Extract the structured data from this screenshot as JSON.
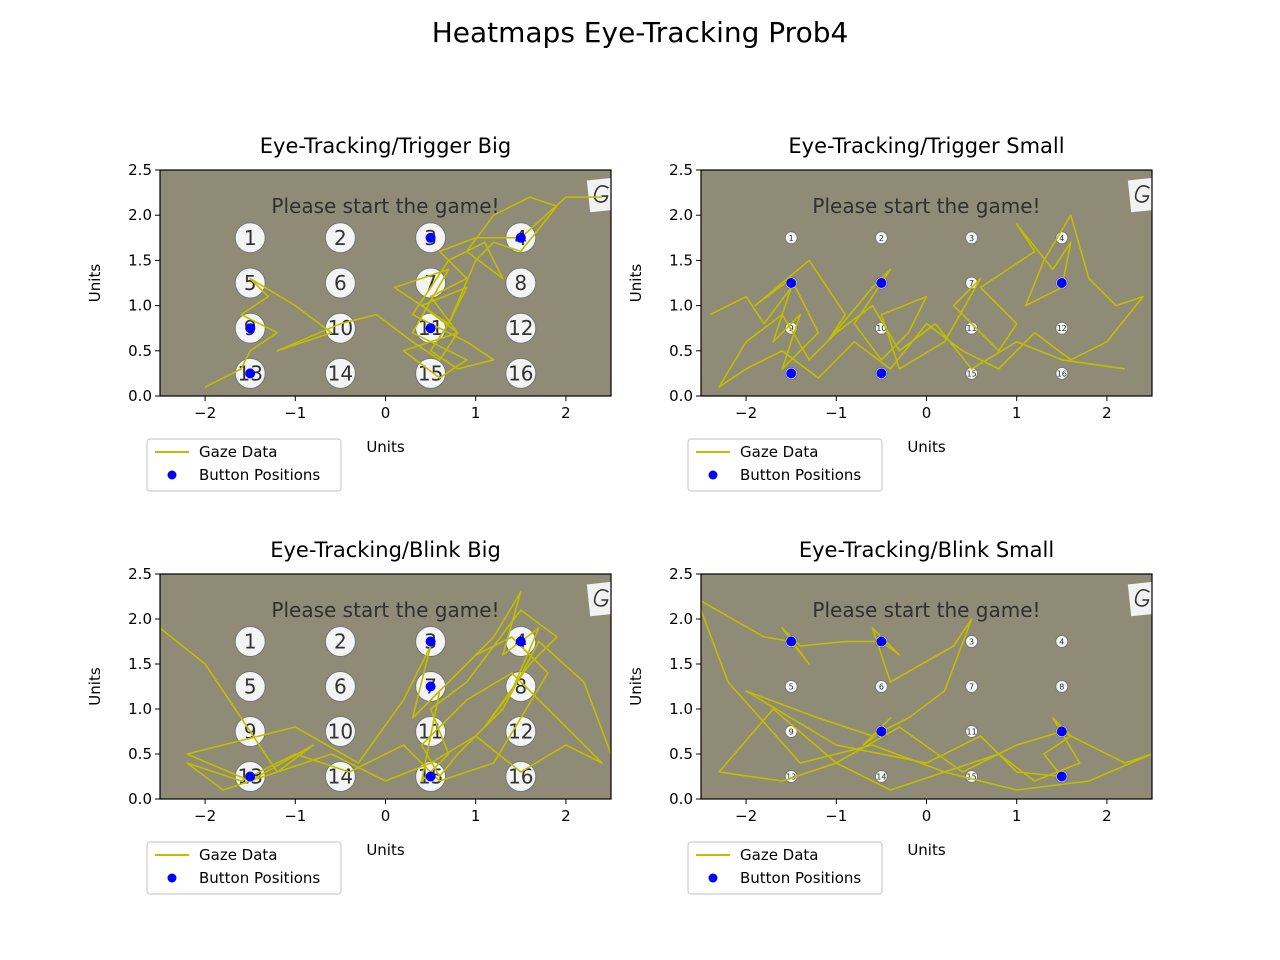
{
  "figure": {
    "title": "Heatmaps Eye-Tracking Prob4"
  },
  "chart_data": [
    {
      "type": "line",
      "title": "Eye-Tracking/Trigger Big",
      "xlabel": "Units",
      "ylabel": "Units",
      "xlim": [
        -2.5,
        2.5
      ],
      "ylim": [
        0,
        2.5
      ],
      "xticks": [
        "−2",
        "−1",
        "0",
        "1",
        "2"
      ],
      "yticks": [
        "0.0",
        "0.5",
        "1.0",
        "1.5",
        "2.0",
        "2.5"
      ],
      "background_text": "Please start the game!",
      "button_labels": [
        "1",
        "2",
        "3",
        "4",
        "5",
        "6",
        "7",
        "8",
        "9",
        "10",
        "11",
        "12",
        "13",
        "14",
        "15",
        "16"
      ],
      "button_size": "big",
      "legend": [
        "Gaze Data",
        "Button Positions"
      ],
      "legend_location": "below-left",
      "series": [
        {
          "name": "Gaze Data",
          "color": "#bfbf00",
          "x": [
            -2.0,
            -1.6,
            -1.5,
            -1.2,
            -1.6,
            -1.3,
            -1.5,
            -1.0,
            -0.6,
            -1.2,
            -0.5,
            -0.1,
            0.3,
            0.6,
            0.8,
            0.4,
            0.9,
            0.7,
            1.0,
            1.2,
            1.5,
            1.9,
            1.6,
            1.2,
            0.9,
            1.3,
            1.1,
            0.7,
            0.5,
            0.3,
            0.9,
            1.2,
            0.8,
            0.5,
            0.7,
            0.4,
            0.1,
            0.7,
            0.3,
            0.9,
            0.6,
            0.2,
            0.8,
            0.5,
            0.9,
            0.6,
            1.0,
            1.5,
            2.0,
            2.4
          ],
          "y": [
            0.1,
            0.3,
            0.5,
            0.7,
            0.9,
            1.1,
            1.3,
            1.0,
            0.7,
            0.5,
            0.8,
            0.9,
            0.6,
            0.4,
            0.7,
            1.0,
            1.2,
            0.8,
            1.5,
            1.7,
            1.6,
            2.1,
            2.2,
            2.0,
            1.6,
            1.3,
            1.7,
            1.5,
            1.2,
            0.9,
            0.6,
            0.4,
            0.3,
            0.5,
            0.8,
            1.0,
            1.2,
            1.4,
            0.7,
            0.4,
            0.2,
            0.5,
            0.7,
            1.1,
            1.3,
            1.6,
            1.75,
            1.75,
            2.2,
            2.2
          ]
        },
        {
          "name": "Button Positions",
          "color": "#0000ff",
          "x": [
            0.5,
            1.5,
            -1.5,
            0.5,
            -1.5
          ],
          "y": [
            1.75,
            1.75,
            0.75,
            0.75,
            0.25
          ]
        }
      ]
    },
    {
      "type": "line",
      "title": "Eye-Tracking/Trigger Small",
      "xlabel": "Units",
      "ylabel": "Units",
      "xlim": [
        -2.5,
        2.5
      ],
      "ylim": [
        0,
        2.5
      ],
      "xticks": [
        "−2",
        "−1",
        "0",
        "1",
        "2"
      ],
      "yticks": [
        "0.0",
        "0.5",
        "1.0",
        "1.5",
        "2.0",
        "2.5"
      ],
      "background_text": "Please start the game!",
      "button_labels": [
        "1",
        "2",
        "3",
        "4",
        "5",
        "6",
        "7",
        "8",
        "9",
        "10",
        "11",
        "12",
        "13",
        "14",
        "15",
        "16"
      ],
      "button_size": "small",
      "legend": [
        "Gaze Data",
        "Button Positions"
      ],
      "legend_location": "below-left",
      "series": [
        {
          "name": "Gaze Data",
          "color": "#bfbf00",
          "x": [
            -2.4,
            -2.0,
            -1.8,
            -1.5,
            -1.7,
            -1.4,
            -1.6,
            -1.2,
            -1.5,
            -1.9,
            -1.3,
            -0.9,
            -1.1,
            -0.6,
            -0.4,
            -0.8,
            -0.5,
            -0.2,
            0.0,
            -0.5,
            -0.3,
            0.2,
            0.6,
            0.3,
            0.8,
            1.0,
            0.6,
            1.2,
            1.0,
            1.4,
            1.6,
            1.5,
            1.1,
            1.3,
            1.6,
            1.8,
            2.1,
            2.4,
            2.0,
            1.6,
            1.2,
            0.8,
            0.4,
            0.0,
            -0.4,
            -0.8,
            -1.2,
            -1.6,
            -2.0,
            -2.3,
            -2.0,
            -1.6,
            -1.3,
            -1.0,
            -0.6,
            -0.3,
            0.1,
            0.5,
            1.0,
            1.5,
            2.2
          ],
          "y": [
            0.9,
            1.1,
            0.8,
            1.2,
            0.6,
            0.9,
            0.3,
            0.7,
            1.3,
            1.0,
            1.5,
            0.9,
            0.6,
            1.2,
            1.4,
            0.8,
            0.4,
            0.7,
            1.1,
            0.9,
            0.3,
            0.6,
            1.3,
            1.0,
            0.5,
            0.8,
            1.2,
            1.6,
            1.9,
            1.4,
            1.7,
            1.2,
            1.0,
            1.5,
            2.0,
            1.3,
            1.0,
            1.1,
            0.6,
            0.4,
            0.7,
            0.3,
            0.5,
            0.8,
            0.3,
            0.6,
            0.2,
            0.5,
            0.3,
            0.1,
            0.6,
            0.9,
            0.4,
            0.7,
            1.0,
            0.5,
            0.8,
            0.3,
            0.6,
            0.4,
            0.3
          ]
        },
        {
          "name": "Button Positions",
          "color": "#0000ff",
          "x": [
            -1.5,
            -0.5,
            1.5,
            -1.5,
            -0.5
          ],
          "y": [
            1.25,
            1.25,
            1.25,
            0.25,
            0.25
          ]
        }
      ]
    },
    {
      "type": "line",
      "title": "Eye-Tracking/Blink Big",
      "xlabel": "Units",
      "ylabel": "Units",
      "xlim": [
        -2.5,
        2.5
      ],
      "ylim": [
        0,
        2.5
      ],
      "xticks": [
        "−2",
        "−1",
        "0",
        "1",
        "2"
      ],
      "yticks": [
        "0.0",
        "0.5",
        "1.0",
        "1.5",
        "2.0",
        "2.5"
      ],
      "background_text": "Please start the game!",
      "button_labels": [
        "1",
        "2",
        "3",
        "4",
        "5",
        "6",
        "7",
        "8",
        "9",
        "10",
        "11",
        "12",
        "13",
        "14",
        "15",
        "16"
      ],
      "button_size": "big",
      "legend": [
        "Gaze Data",
        "Button Positions"
      ],
      "legend_location": "below-left",
      "series": [
        {
          "name": "Gaze Data",
          "color": "#bfbf00",
          "x": [
            -2.5,
            -2.0,
            -1.6,
            -1.2,
            -0.8,
            -1.5,
            -2.2,
            -1.0,
            -0.3,
            0.2,
            0.5,
            0.3,
            0.8,
            1.2,
            1.5,
            1.3,
            1.7,
            1.4,
            1.1,
            1.6,
            1.9,
            1.5,
            0.9,
            0.5,
            0.7,
            0.4,
            0.6,
            1.0,
            1.4,
            1.8,
            1.5,
            1.2,
            0.6,
            0.2,
            -0.4,
            -1.0,
            -1.6,
            -2.2,
            -1.8,
            -1.2,
            -0.6,
            0.0,
            0.5,
            1.0,
            1.5,
            2.0,
            2.4,
            1.9,
            1.4,
            0.9,
            0.4,
            0.6,
            0.8,
            1.3,
            1.7,
            2.2,
            2.5
          ],
          "y": [
            1.9,
            1.5,
            0.9,
            0.3,
            0.6,
            0.2,
            0.5,
            0.8,
            0.4,
            1.1,
            1.7,
            0.9,
            1.4,
            1.8,
            2.3,
            1.6,
            1.9,
            1.2,
            0.8,
            1.5,
            1.8,
            2.1,
            1.3,
            1.0,
            0.5,
            0.2,
            1.2,
            1.6,
            1.8,
            1.4,
            0.9,
            0.4,
            0.2,
            0.6,
            0.3,
            0.5,
            0.2,
            0.4,
            0.1,
            0.3,
            0.5,
            0.2,
            0.4,
            0.7,
            0.3,
            0.6,
            0.4,
            0.9,
            1.4,
            1.1,
            0.6,
            0.25,
            0.5,
            1.0,
            1.75,
            1.3,
            0.5
          ]
        },
        {
          "name": "Button Positions",
          "color": "#0000ff",
          "x": [
            0.5,
            1.5,
            0.5,
            -1.5,
            0.5
          ],
          "y": [
            1.75,
            1.75,
            1.25,
            0.25,
            0.25
          ]
        }
      ]
    },
    {
      "type": "line",
      "title": "Eye-Tracking/Blink Small",
      "xlabel": "Units",
      "ylabel": "Units",
      "xlim": [
        -2.5,
        2.5
      ],
      "ylim": [
        0,
        2.5
      ],
      "xticks": [
        "−2",
        "−1",
        "0",
        "1",
        "2"
      ],
      "yticks": [
        "0.0",
        "0.5",
        "1.0",
        "1.5",
        "2.0",
        "2.5"
      ],
      "background_text": "Please start the game!",
      "button_labels": [
        "1",
        "2",
        "3",
        "4",
        "5",
        "6",
        "7",
        "8",
        "9",
        "10",
        "11",
        "12",
        "13",
        "14",
        "15",
        "16"
      ],
      "button_size": "small",
      "legend": [
        "Gaze Data",
        "Button Positions"
      ],
      "legend_location": "below-left",
      "series": [
        {
          "name": "Gaze Data",
          "color": "#bfbf00",
          "x": [
            -2.5,
            -1.8,
            -1.5,
            -1.3,
            -1.6,
            -1.4,
            -0.9,
            -0.5,
            -0.3,
            -0.6,
            -0.4,
            0.3,
            0.5,
            0.2,
            -0.2,
            -0.5,
            -0.7,
            -0.4,
            -0.6,
            -1.2,
            -2.0,
            -1.0,
            0.0,
            0.6,
            1.0,
            1.5,
            1.3,
            1.6,
            1.4,
            1.7,
            1.2,
            0.8,
            0.2,
            -0.4,
            -1.0,
            -1.6,
            -2.3,
            -1.7,
            -1.0,
            -0.3,
            0.4,
            1.0,
            1.5,
            2.2,
            2.5,
            1.8,
            1.0,
            0.2,
            -0.6,
            -1.4,
            -2.2,
            -2.5
          ],
          "y": [
            2.2,
            1.8,
            1.75,
            1.5,
            1.9,
            1.7,
            1.75,
            1.75,
            1.6,
            1.9,
            1.3,
            1.7,
            2.0,
            1.2,
            0.9,
            0.75,
            0.6,
            0.9,
            0.7,
            0.9,
            1.2,
            0.6,
            0.4,
            0.7,
            0.3,
            0.25,
            0.5,
            0.7,
            0.9,
            0.4,
            0.2,
            0.5,
            0.3,
            0.1,
            0.4,
            0.2,
            0.3,
            1.0,
            0.4,
            0.8,
            0.3,
            0.6,
            0.75,
            0.4,
            0.5,
            0.2,
            0.1,
            0.3,
            0.6,
            0.4,
            1.3,
            2.1
          ]
        },
        {
          "name": "Button Positions",
          "color": "#0000ff",
          "x": [
            -1.5,
            -0.5,
            -0.5,
            1.5,
            1.5
          ],
          "y": [
            1.75,
            1.75,
            0.75,
            0.75,
            0.25
          ]
        }
      ]
    }
  ]
}
